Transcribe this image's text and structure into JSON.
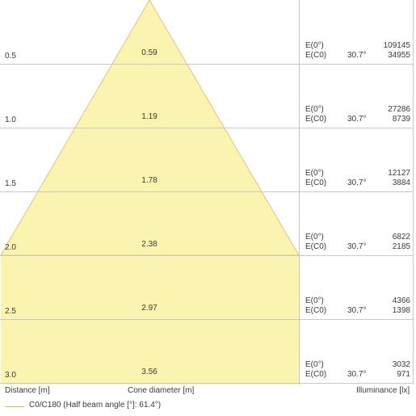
{
  "rows": [
    {
      "distance": "0.5",
      "diameter": "0.59",
      "e0_label": "E(0°)",
      "ec0_label": "E(C0)",
      "angle": "30.7°",
      "e0_value": "109145",
      "ec0_value": "34955"
    },
    {
      "distance": "1.0",
      "diameter": "1.19",
      "e0_label": "E(0°)",
      "ec0_label": "E(C0)",
      "angle": "30.7°",
      "e0_value": "27286",
      "ec0_value": "8739"
    },
    {
      "distance": "1.5",
      "diameter": "1.78",
      "e0_label": "E(0°)",
      "ec0_label": "E(C0)",
      "angle": "30.7°",
      "e0_value": "12127",
      "ec0_value": "3884"
    },
    {
      "distance": "2.0",
      "diameter": "2.38",
      "e0_label": "E(0°)",
      "ec0_label": "E(C0)",
      "angle": "30.7°",
      "e0_value": "6822",
      "ec0_value": "2185"
    },
    {
      "distance": "2.5",
      "diameter": "2.97",
      "e0_label": "E(0°)",
      "ec0_label": "E(C0)",
      "angle": "30.7°",
      "e0_value": "4366",
      "ec0_value": "1398"
    },
    {
      "distance": "3.0",
      "diameter": "3.56",
      "e0_label": "E(0°)",
      "ec0_label": "E(C0)",
      "angle": "30.7°",
      "e0_value": "3032",
      "ec0_value": "971"
    }
  ],
  "footer": {
    "distance_label": "Distance [m]",
    "diameter_label": "Cone diameter [m]",
    "illuminance_label": "Illuminance [lx]"
  },
  "legend": {
    "label": "C0/C180 (Half beam angle [°]: 61.4°)"
  },
  "colors": {
    "cone_fill": "#fbf3b0",
    "cone_stroke": "#d8c77a",
    "grid": "#c8c8c8",
    "legend_line": "#e0b44a"
  }
}
